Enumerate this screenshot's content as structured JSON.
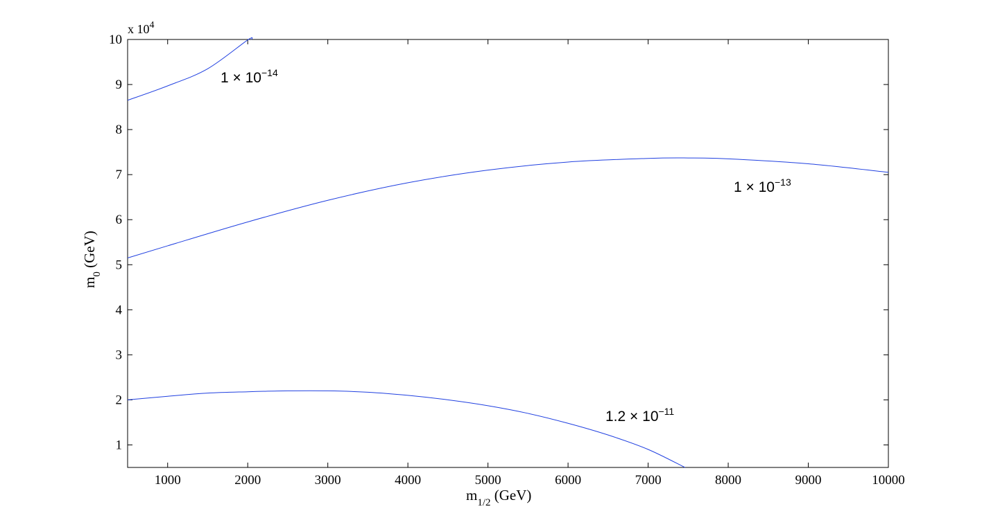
{
  "chart_data": {
    "type": "line",
    "title": "",
    "xlabel": {
      "base": "m",
      "sub": "1/2",
      "rest": " (GeV)"
    },
    "ylabel": {
      "base": "m",
      "sub": "0",
      "rest": " (GeV)"
    },
    "y_exponent": {
      "prefix": "x 10",
      "power": "4"
    },
    "xlim": [
      500,
      10000
    ],
    "ylim": [
      5000,
      100000
    ],
    "x_ticks": [
      1000,
      2000,
      3000,
      4000,
      5000,
      6000,
      7000,
      8000,
      9000,
      10000
    ],
    "y_ticks": [
      {
        "value": 10000,
        "label": "1"
      },
      {
        "value": 20000,
        "label": "2"
      },
      {
        "value": 30000,
        "label": "3"
      },
      {
        "value": 40000,
        "label": "4"
      },
      {
        "value": 50000,
        "label": "5"
      },
      {
        "value": 60000,
        "label": "6"
      },
      {
        "value": 70000,
        "label": "7"
      },
      {
        "value": 80000,
        "label": "8"
      },
      {
        "value": 90000,
        "label": "9"
      },
      {
        "value": 100000,
        "label": "10"
      }
    ],
    "grid": false,
    "line_color": "#1f3fe0",
    "series": [
      {
        "label_mantissa": "1",
        "label_exponent": "−14",
        "points": [
          [
            500,
            86500
          ],
          [
            1000,
            89700
          ],
          [
            1500,
            93500
          ],
          [
            2000,
            99900
          ],
          [
            2050,
            100000
          ]
        ]
      },
      {
        "label_mantissa": "1",
        "label_exponent": "−13",
        "points": [
          [
            500,
            51500
          ],
          [
            1000,
            54200
          ],
          [
            2000,
            59500
          ],
          [
            3000,
            64300
          ],
          [
            4000,
            68200
          ],
          [
            5000,
            71000
          ],
          [
            6000,
            72800
          ],
          [
            7000,
            73600
          ],
          [
            7500,
            73700
          ],
          [
            8000,
            73500
          ],
          [
            9000,
            72400
          ],
          [
            10000,
            70500
          ]
        ]
      },
      {
        "label_mantissa": "1.2",
        "label_exponent": "−11",
        "points": [
          [
            500,
            20000
          ],
          [
            1000,
            20800
          ],
          [
            1500,
            21500
          ],
          [
            2000,
            21800
          ],
          [
            2500,
            22000
          ],
          [
            3000,
            22000
          ],
          [
            3500,
            21700
          ],
          [
            4000,
            21000
          ],
          [
            4500,
            20000
          ],
          [
            5000,
            18700
          ],
          [
            5500,
            17000
          ],
          [
            6000,
            14800
          ],
          [
            6500,
            12200
          ],
          [
            7000,
            9000
          ],
          [
            7460,
            5000
          ]
        ]
      }
    ]
  }
}
